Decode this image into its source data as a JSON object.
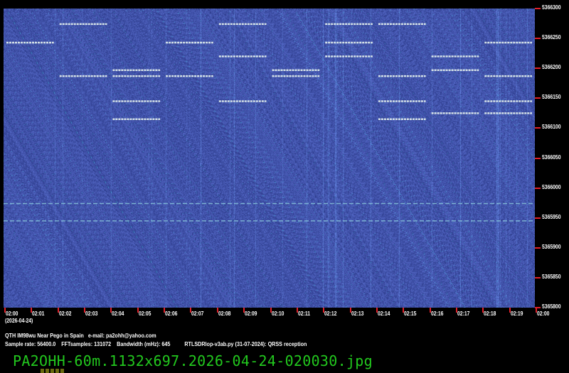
{
  "chart_data": {
    "type": "heatmap",
    "subtype": "spectrogram",
    "x_ticks": [
      "02:00",
      "02:01",
      "02:02",
      "02:03",
      "02:04",
      "02:05",
      "02:06",
      "02:07",
      "02:08",
      "02:09",
      "02:10",
      "02:11",
      "02:12",
      "02:13",
      "02:14",
      "02:15",
      "02:16",
      "02:17",
      "02:18",
      "02:19",
      "02:00"
    ],
    "x_date": "(2026-04-24)",
    "xlim_minutes": [
      0,
      20
    ],
    "y_ticks": [
      "5366300",
      "5366250",
      "5366200",
      "5366150",
      "5366100",
      "5366050",
      "5366000",
      "5365950",
      "5365900",
      "5365850",
      "5365800"
    ],
    "ylim": [
      5365800,
      5366300
    ],
    "background_color": "#3a47a0",
    "tick_color": "#e0202a",
    "signals": [
      {
        "t": [
          2,
          4
        ],
        "f": 5366274
      },
      {
        "t": [
          8,
          10
        ],
        "f": 5366274
      },
      {
        "t": [
          12,
          14
        ],
        "f": 5366274
      },
      {
        "t": [
          14,
          16
        ],
        "f": 5366274
      },
      {
        "t": [
          0,
          2
        ],
        "f": 5366243
      },
      {
        "t": [
          6,
          8
        ],
        "f": 5366243
      },
      {
        "t": [
          12,
          14
        ],
        "f": 5366243
      },
      {
        "t": [
          18,
          20
        ],
        "f": 5366243
      },
      {
        "t": [
          8,
          10
        ],
        "f": 5366220
      },
      {
        "t": [
          12,
          14
        ],
        "f": 5366220
      },
      {
        "t": [
          16,
          18
        ],
        "f": 5366220
      },
      {
        "t": [
          4,
          6
        ],
        "f": 5366197
      },
      {
        "t": [
          10,
          12
        ],
        "f": 5366197
      },
      {
        "t": [
          16,
          18
        ],
        "f": 5366197
      },
      {
        "t": [
          2,
          4
        ],
        "f": 5366187
      },
      {
        "t": [
          4,
          6
        ],
        "f": 5366187
      },
      {
        "t": [
          6,
          8
        ],
        "f": 5366187
      },
      {
        "t": [
          10,
          12
        ],
        "f": 5366187
      },
      {
        "t": [
          14,
          16
        ],
        "f": 5366187
      },
      {
        "t": [
          18,
          20
        ],
        "f": 5366187
      },
      {
        "t": [
          4,
          6
        ],
        "f": 5366145
      },
      {
        "t": [
          8,
          10
        ],
        "f": 5366145
      },
      {
        "t": [
          14,
          16
        ],
        "f": 5366145
      },
      {
        "t": [
          18,
          20
        ],
        "f": 5366145
      },
      {
        "t": [
          16,
          18
        ],
        "f": 5366125
      },
      {
        "t": [
          18,
          20
        ],
        "f": 5366125
      },
      {
        "t": [
          4,
          6
        ],
        "f": 5366115
      },
      {
        "t": [
          14,
          16
        ],
        "f": 5366115
      },
      {
        "t": [
          0,
          20
        ],
        "f": 5365974,
        "style": "dotted"
      },
      {
        "t": [
          0,
          20
        ],
        "f": 5365945,
        "style": "dotted"
      }
    ]
  },
  "info": {
    "line1": "QTH IM98wu Near Pego in Spain   e-mail: pa2ohh@yahoo.com",
    "line2": "Sample rate: 56400.0    FFTsamples: 131072    Bandwidth (mHz): 645          RTLSDRlop-v3ab.py (31-07-2024): QRSS reception"
  },
  "filename": "PA2OHH-60m.1132x697.2026-04-24-020030.jpg"
}
